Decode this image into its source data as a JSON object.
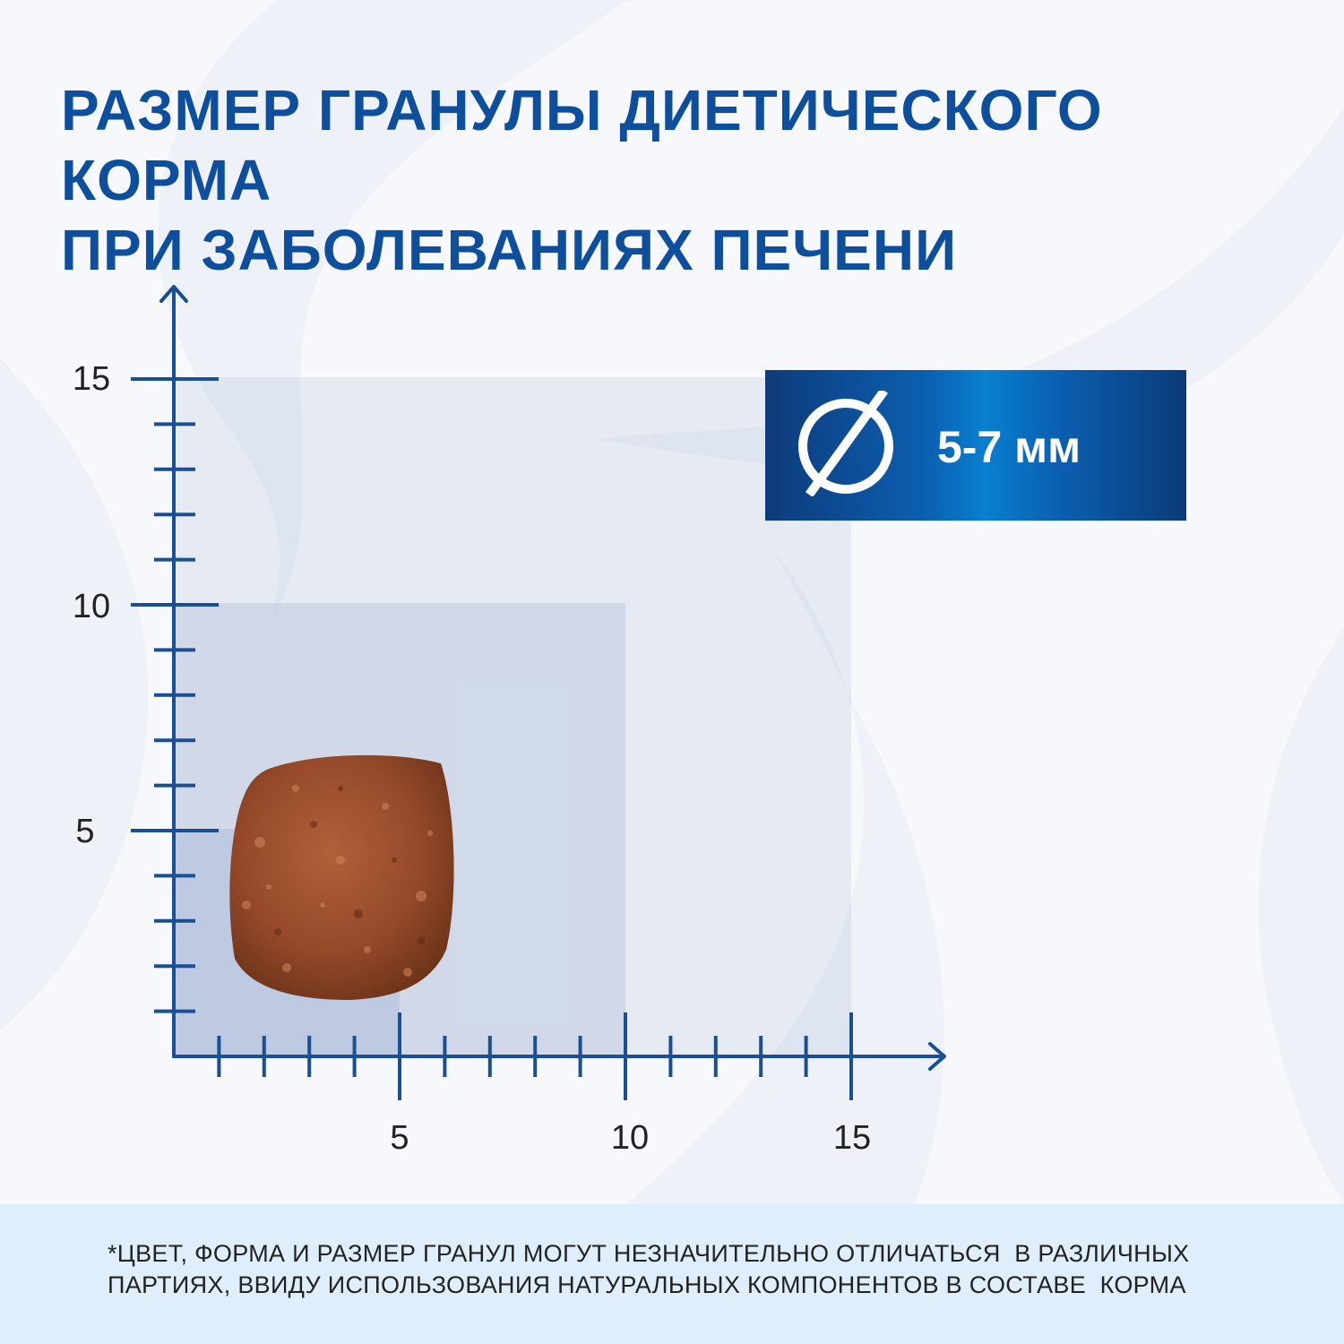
{
  "title": {
    "line1": "РАЗМЕР ГРАНУЛЫ ДИЕТИЧЕСКОГО КОРМА",
    "line2": "ПРИ ЗАБОЛЕВАНИЯХ ПЕЧЕНИ"
  },
  "badge": {
    "icon": "diameter-icon",
    "value": "5-7 мм"
  },
  "scale": {
    "x_ticks": [
      "5",
      "10",
      "15"
    ],
    "y_ticks": [
      "15",
      "10",
      "5"
    ]
  },
  "footer": {
    "line1": "*ЦВЕТ, ФОРМА И РАЗМЕР ГРАНУЛ МОГУТ НЕЗНАЧИТЕЛЬНО ОТЛИЧАТЬСЯ  В РАЗЛИЧНЫХ",
    "line2": "ПАРТИЯХ, ВВИДУ ИСПОЛЬЗОВАНИЯ НАТУРАЛЬНЫХ КОМПОНЕНТОВ В СОСТАВЕ  КОРМА"
  },
  "colors": {
    "brand_blue": "#0d4f9c",
    "axis_blue": "#1a4f94",
    "kibble_brown": "#9a4e2e",
    "footer_bg": "#deeefa"
  }
}
